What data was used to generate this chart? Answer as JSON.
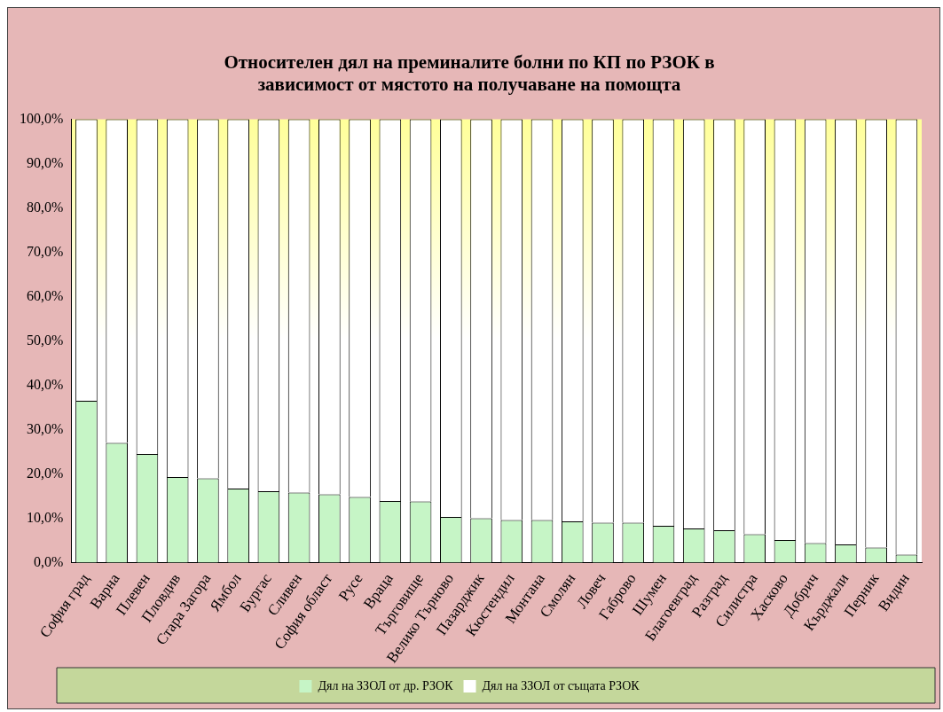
{
  "chart_data": {
    "type": "bar",
    "stacked": true,
    "title": [
      "Относителен дял на преминалите болни по КП по РЗОК в",
      "зависимост от мястото на получаване на помощта"
    ],
    "categories": [
      "София град",
      "Варна",
      "Плевен",
      "Пловдив",
      "Стара Загора",
      "Ямбол",
      "Бургас",
      "Сливен",
      "София област",
      "Русе",
      "Враца",
      "Търговище",
      "Велико Търново",
      "Пазарджик",
      "Кюстендил",
      "Монтана",
      "Смолян",
      "Ловеч",
      "Габрово",
      "Шумен",
      "Благоевград",
      "Разград",
      "Силистра",
      "Хасково",
      "Добрич",
      "Кърджали",
      "Перник",
      "Видин"
    ],
    "series": [
      {
        "name": "Дял на ЗЗОЛ от др. РЗОК",
        "color": "#c6f5c6",
        "values": [
          36.5,
          27,
          24.5,
          19.3,
          19,
          16.7,
          16.1,
          15.8,
          15.4,
          14.8,
          13.9,
          13.8,
          10.3,
          10,
          9.6,
          9.6,
          9.3,
          9,
          9,
          8.3,
          7.7,
          7.3,
          6.4,
          5.1,
          4.4,
          4.1,
          3.4,
          1.8
        ]
      },
      {
        "name": "Дял на ЗЗОЛ от същата РЗОК",
        "color": "#ffffff",
        "values": [
          63.5,
          73,
          75.5,
          80.7,
          81,
          83.3,
          83.9,
          84.2,
          84.6,
          85.2,
          86.1,
          86.2,
          89.7,
          90,
          90.4,
          90.4,
          90.7,
          91,
          91,
          91.7,
          92.3,
          92.7,
          93.6,
          94.9,
          95.6,
          95.9,
          96.6,
          98.2
        ]
      }
    ],
    "ylim": [
      0,
      100
    ],
    "yticks": [
      {
        "value": 0,
        "label": "0,0%"
      },
      {
        "value": 10,
        "label": "10,0%"
      },
      {
        "value": 20,
        "label": "20,0%"
      },
      {
        "value": 30,
        "label": "30,0%"
      },
      {
        "value": 40,
        "label": "40,0%"
      },
      {
        "value": 50,
        "label": "50,0%"
      },
      {
        "value": 60,
        "label": "60,0%"
      },
      {
        "value": 70,
        "label": "70,0%"
      },
      {
        "value": 80,
        "label": "80,0%"
      },
      {
        "value": 90,
        "label": "90,0%"
      },
      {
        "value": 100,
        "label": "100,0%"
      }
    ],
    "grid": false,
    "legend": "bottom"
  }
}
